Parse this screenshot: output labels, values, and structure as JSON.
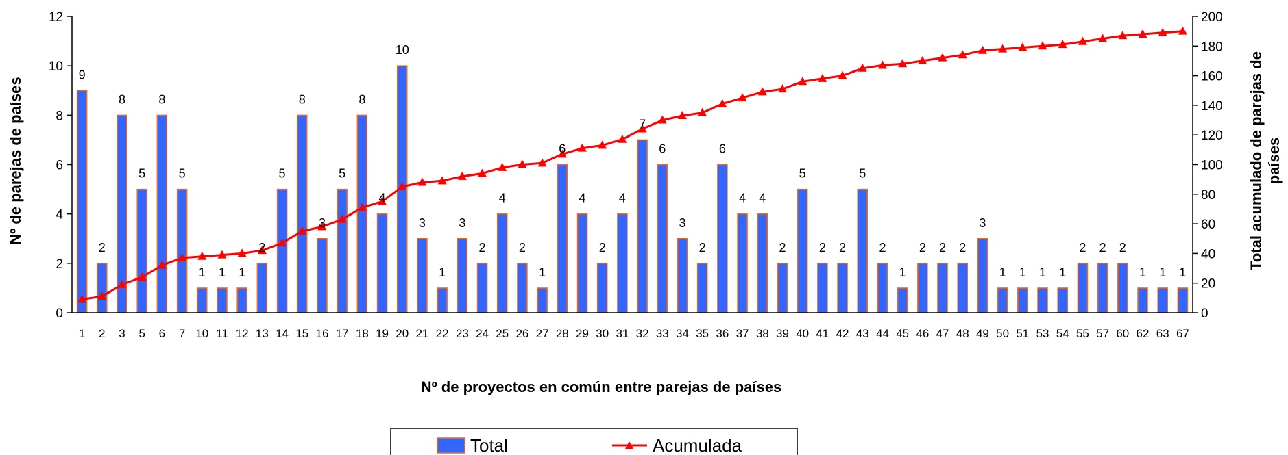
{
  "chart_data": {
    "type": "bar",
    "xlabel": "Nº de proyectos en común entre parejas de países",
    "ylabel_left": "Nº de parejas de países",
    "ylabel_right": "Total acumulado de parejas de países",
    "ylim_left": [
      0,
      12
    ],
    "ylim_right": [
      0,
      200
    ],
    "yticks_left": [
      0,
      2,
      4,
      6,
      8,
      10,
      12
    ],
    "yticks_right": [
      0,
      20,
      40,
      60,
      80,
      100,
      120,
      140,
      160,
      180,
      200
    ],
    "grid": false,
    "legend_position": "bottom",
    "categories": [
      "1",
      "2",
      "3",
      "5",
      "6",
      "7",
      "10",
      "11",
      "12",
      "13",
      "14",
      "15",
      "16",
      "17",
      "18",
      "19",
      "20",
      "21",
      "22",
      "23",
      "24",
      "25",
      "26",
      "27",
      "28",
      "29",
      "30",
      "31",
      "32",
      "33",
      "34",
      "35",
      "36",
      "37",
      "38",
      "39",
      "40",
      "41",
      "42",
      "43",
      "44",
      "45",
      "46",
      "47",
      "48",
      "49",
      "50",
      "51",
      "53",
      "54",
      "55",
      "57",
      "60",
      "62",
      "63",
      "67"
    ],
    "series": [
      {
        "name": "Total",
        "kind": "bar",
        "axis": "left",
        "color": "#3366ff",
        "edge_color": "#ff6600",
        "values": [
          9,
          2,
          8,
          5,
          8,
          5,
          1,
          1,
          1,
          2,
          5,
          8,
          3,
          5,
          8,
          4,
          10,
          3,
          1,
          3,
          2,
          4,
          2,
          1,
          6,
          4,
          2,
          4,
          7,
          6,
          3,
          2,
          6,
          4,
          4,
          2,
          5,
          2,
          2,
          5,
          2,
          1,
          2,
          2,
          2,
          3,
          1,
          1,
          1,
          1,
          2,
          2,
          2,
          1,
          1,
          1
        ]
      },
      {
        "name": "Acumulada",
        "kind": "line",
        "axis": "right",
        "color": "#ff0000",
        "marker": "triangle",
        "values": [
          9,
          11,
          19,
          24,
          32,
          37,
          38,
          39,
          40,
          42,
          47,
          55,
          58,
          63,
          71,
          75,
          85,
          88,
          89,
          92,
          94,
          98,
          100,
          101,
          107,
          111,
          113,
          117,
          124,
          130,
          133,
          135,
          141,
          145,
          149,
          151,
          156,
          158,
          160,
          165,
          167,
          168,
          170,
          172,
          174,
          177,
          178,
          179,
          180,
          181,
          183,
          185,
          187,
          188,
          189,
          190
        ]
      }
    ]
  }
}
